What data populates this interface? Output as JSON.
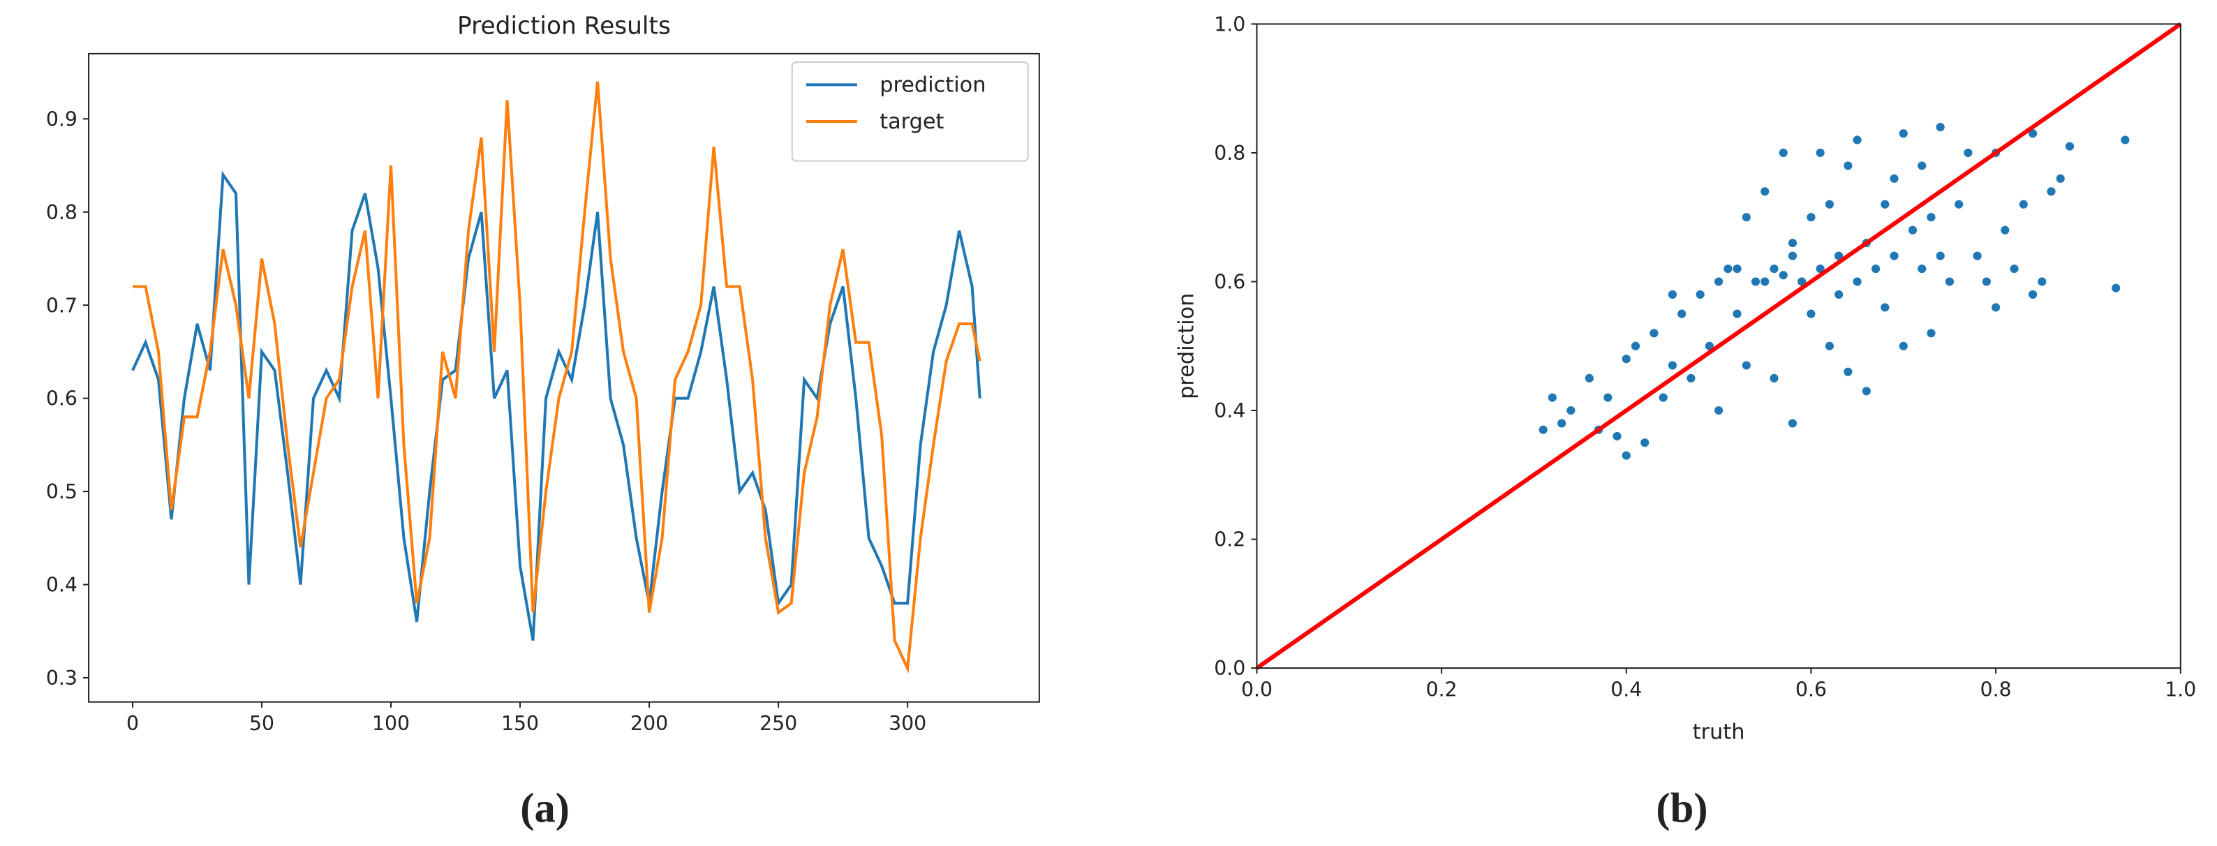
{
  "chart_data": [
    {
      "type": "line",
      "title": "Prediction Results",
      "caption": "(a)",
      "legend": "upper right",
      "x": [
        0,
        5,
        10,
        15,
        20,
        25,
        30,
        35,
        40,
        45,
        50,
        55,
        60,
        65,
        70,
        75,
        80,
        85,
        90,
        95,
        100,
        105,
        110,
        115,
        120,
        125,
        130,
        135,
        140,
        145,
        150,
        155,
        160,
        165,
        170,
        175,
        180,
        185,
        190,
        195,
        200,
        205,
        210,
        215,
        220,
        225,
        230,
        235,
        240,
        245,
        250,
        255,
        260,
        265,
        270,
        275,
        280,
        285,
        290,
        295,
        300,
        305,
        310,
        315,
        320,
        325,
        328
      ],
      "series": [
        {
          "name": "prediction",
          "color": "#1f77b4",
          "values": [
            0.63,
            0.66,
            0.62,
            0.47,
            0.6,
            0.68,
            0.63,
            0.84,
            0.82,
            0.4,
            0.65,
            0.63,
            0.52,
            0.4,
            0.6,
            0.63,
            0.6,
            0.78,
            0.82,
            0.74,
            0.6,
            0.45,
            0.36,
            0.5,
            0.62,
            0.63,
            0.75,
            0.8,
            0.6,
            0.63,
            0.42,
            0.34,
            0.6,
            0.65,
            0.62,
            0.7,
            0.8,
            0.6,
            0.55,
            0.45,
            0.38,
            0.5,
            0.6,
            0.6,
            0.65,
            0.72,
            0.62,
            0.5,
            0.52,
            0.48,
            0.38,
            0.4,
            0.62,
            0.6,
            0.68,
            0.72,
            0.6,
            0.45,
            0.42,
            0.38,
            0.38,
            0.55,
            0.65,
            0.7,
            0.78,
            0.72,
            0.6
          ]
        },
        {
          "name": "target",
          "color": "#ff7f0e",
          "values": [
            0.72,
            0.72,
            0.65,
            0.48,
            0.58,
            0.58,
            0.65,
            0.76,
            0.7,
            0.6,
            0.75,
            0.68,
            0.55,
            0.44,
            0.52,
            0.6,
            0.62,
            0.72,
            0.78,
            0.6,
            0.85,
            0.55,
            0.38,
            0.45,
            0.65,
            0.6,
            0.78,
            0.88,
            0.65,
            0.92,
            0.7,
            0.37,
            0.5,
            0.6,
            0.65,
            0.8,
            0.94,
            0.75,
            0.65,
            0.6,
            0.37,
            0.45,
            0.62,
            0.65,
            0.7,
            0.87,
            0.72,
            0.72,
            0.62,
            0.45,
            0.37,
            0.38,
            0.52,
            0.58,
            0.7,
            0.76,
            0.66,
            0.66,
            0.56,
            0.34,
            0.31,
            0.45,
            0.55,
            0.64,
            0.68,
            0.68,
            0.64
          ]
        }
      ],
      "xlim": [
        -17,
        351
      ],
      "ylim": [
        0.274,
        0.97
      ],
      "xticks": [
        0,
        50,
        100,
        150,
        200,
        250,
        300
      ],
      "yticks": [
        0.3,
        0.4,
        0.5,
        0.6,
        0.7,
        0.8,
        0.9
      ]
    },
    {
      "type": "scatter",
      "caption": "(b)",
      "xlabel": "truth",
      "ylabel": "prediction",
      "color": "#1f77b4",
      "x": [
        0.31,
        0.32,
        0.33,
        0.34,
        0.36,
        0.37,
        0.38,
        0.39,
        0.4,
        0.4,
        0.41,
        0.42,
        0.43,
        0.44,
        0.45,
        0.46,
        0.47,
        0.48,
        0.49,
        0.5,
        0.5,
        0.51,
        0.52,
        0.53,
        0.53,
        0.54,
        0.55,
        0.55,
        0.56,
        0.56,
        0.57,
        0.57,
        0.58,
        0.58,
        0.59,
        0.6,
        0.6,
        0.61,
        0.61,
        0.62,
        0.62,
        0.63,
        0.64,
        0.64,
        0.65,
        0.65,
        0.66,
        0.66,
        0.67,
        0.68,
        0.68,
        0.69,
        0.7,
        0.7,
        0.71,
        0.72,
        0.72,
        0.73,
        0.73,
        0.74,
        0.74,
        0.75,
        0.76,
        0.77,
        0.78,
        0.79,
        0.8,
        0.8,
        0.81,
        0.82,
        0.83,
        0.84,
        0.84,
        0.85,
        0.86,
        0.87,
        0.88,
        0.93,
        0.94,
        0.45,
        0.52,
        0.58,
        0.63,
        0.69
      ],
      "y": [
        0.37,
        0.42,
        0.38,
        0.4,
        0.45,
        0.37,
        0.42,
        0.36,
        0.33,
        0.48,
        0.5,
        0.35,
        0.52,
        0.42,
        0.47,
        0.55,
        0.45,
        0.58,
        0.5,
        0.6,
        0.4,
        0.62,
        0.55,
        0.7,
        0.47,
        0.6,
        0.74,
        0.6,
        0.62,
        0.45,
        0.8,
        0.61,
        0.38,
        0.64,
        0.6,
        0.7,
        0.55,
        0.8,
        0.62,
        0.5,
        0.72,
        0.64,
        0.46,
        0.78,
        0.6,
        0.82,
        0.43,
        0.66,
        0.62,
        0.56,
        0.72,
        0.64,
        0.83,
        0.5,
        0.68,
        0.62,
        0.78,
        0.52,
        0.7,
        0.84,
        0.64,
        0.6,
        0.72,
        0.8,
        0.64,
        0.6,
        0.8,
        0.56,
        0.68,
        0.62,
        0.72,
        0.83,
        0.58,
        0.6,
        0.74,
        0.76,
        0.81,
        0.59,
        0.82,
        0.58,
        0.62,
        0.66,
        0.58,
        0.76
      ],
      "reference_line": {
        "x": [
          0,
          1
        ],
        "y": [
          0,
          1
        ],
        "color": "#ff0000"
      },
      "xlim": [
        0,
        1
      ],
      "ylim": [
        0,
        1
      ],
      "xticks": [
        {
          "value": 0,
          "label": "0.0"
        },
        0.2,
        0.4,
        0.6,
        0.8,
        {
          "value": 1,
          "label": "1.0"
        }
      ],
      "yticks": [
        {
          "value": 0,
          "label": "0.0"
        },
        0.2,
        0.4,
        0.6,
        0.8,
        {
          "value": 1,
          "label": "1.0"
        }
      ]
    }
  ]
}
